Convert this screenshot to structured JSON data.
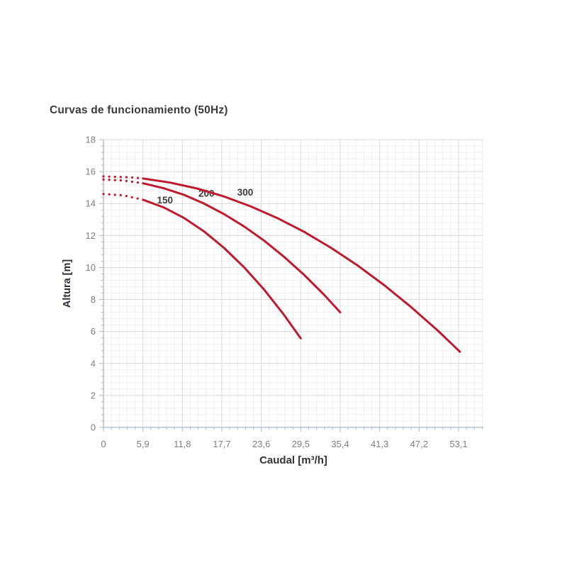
{
  "chart_data": {
    "type": "line",
    "title": "Curvas de funcionamiento (50Hz)",
    "xlabel": "Caudal [m³/h]",
    "ylabel": "Altura [m]",
    "xlim": [
      0,
      56.8
    ],
    "ylim": [
      0,
      18
    ],
    "x_ticks": [
      0,
      5.9,
      11.8,
      17.7,
      23.6,
      29.5,
      35.4,
      41.3,
      47.2,
      53.1
    ],
    "x_tick_labels": [
      "0",
      "5,9",
      "11,8",
      "17,7",
      "23,6",
      "29,5",
      "35,4",
      "41,3",
      "47,2",
      "53,1"
    ],
    "y_ticks": [
      0,
      2,
      4,
      6,
      8,
      10,
      12,
      14,
      16,
      18
    ],
    "y_tick_labels": [
      "0",
      "2",
      "4",
      "6",
      "8",
      "10",
      "12",
      "14",
      "16",
      "18"
    ],
    "x_minor_step": 1.18,
    "y_minor_step": 0.4,
    "grid": true,
    "legend_position": "none",
    "colors": {
      "curve_red": "#c01a2e",
      "grid_major": "#d9d9d9",
      "grid_minor": "#efefef",
      "axis_line": "#a9b7cf",
      "tick_mark": "#a9b7cf",
      "tick_text": "#7f7f7f",
      "label_text": "#3a3a3a"
    },
    "series": [
      {
        "name": "150",
        "label": "150",
        "color": "#c01a2e",
        "dotted_until": 5.9,
        "label_at": [
          9.2,
          14.2
        ],
        "points": [
          [
            0,
            14.6
          ],
          [
            3,
            14.51
          ],
          [
            5.9,
            14.24
          ],
          [
            9,
            13.76
          ],
          [
            12,
            13.11
          ],
          [
            15,
            12.27
          ],
          [
            18,
            11.24
          ],
          [
            21,
            10.03
          ],
          [
            24,
            8.63
          ],
          [
            27,
            7.04
          ],
          [
            29.5,
            5.57
          ]
        ]
      },
      {
        "name": "200",
        "label": "200",
        "color": "#c01a2e",
        "dotted_until": 5.9,
        "label_at": [
          15.4,
          14.62
        ],
        "points": [
          [
            0,
            15.5
          ],
          [
            3,
            15.44
          ],
          [
            5.9,
            15.27
          ],
          [
            9,
            14.96
          ],
          [
            12,
            14.55
          ],
          [
            15,
            14.01
          ],
          [
            18,
            13.35
          ],
          [
            21,
            12.58
          ],
          [
            24,
            11.69
          ],
          [
            27,
            10.67
          ],
          [
            30,
            9.54
          ],
          [
            33,
            8.29
          ],
          [
            35.4,
            7.2
          ]
        ]
      },
      {
        "name": "300",
        "label": "300",
        "color": "#c01a2e",
        "dotted_until": 5.9,
        "label_at": [
          21.2,
          14.7
        ],
        "points": [
          [
            0,
            15.7
          ],
          [
            4,
            15.64
          ],
          [
            5.9,
            15.57
          ],
          [
            10,
            15.31
          ],
          [
            14,
            14.94
          ],
          [
            18,
            14.45
          ],
          [
            22,
            13.83
          ],
          [
            26,
            13.09
          ],
          [
            30,
            12.23
          ],
          [
            34,
            11.24
          ],
          [
            38,
            10.13
          ],
          [
            42,
            8.89
          ],
          [
            46,
            7.53
          ],
          [
            50,
            6.05
          ],
          [
            53.3,
            4.73
          ]
        ]
      }
    ]
  }
}
